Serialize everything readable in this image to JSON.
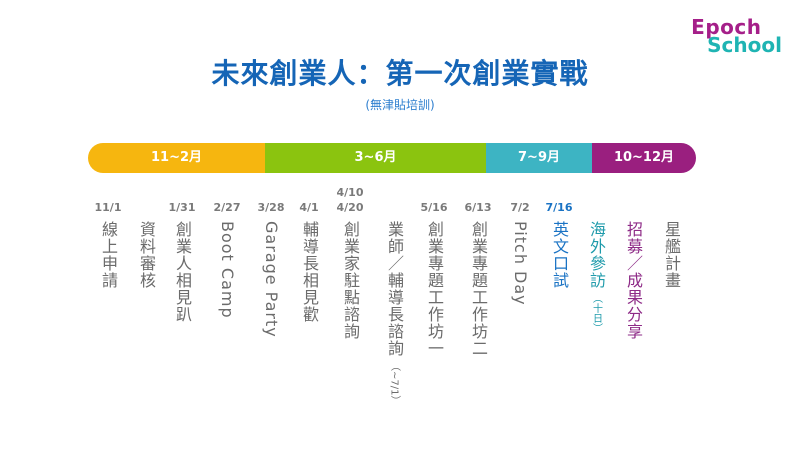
{
  "logo": {
    "line1": "Epoch",
    "line2": "School"
  },
  "title": "未來創業人：第一次創業實戰",
  "subtitle": "(無津貼培訓)",
  "timeline": {
    "segments": [
      {
        "label": "11~2月",
        "color": "#f6b60f"
      },
      {
        "label": "3~6月",
        "color": "#8bc40f"
      },
      {
        "label": "7~9月",
        "color": "#3db4c3"
      },
      {
        "label": "10~12月",
        "color": "#9a1f7f"
      }
    ]
  },
  "events": [
    {
      "date": "11/1",
      "label": "線上申請"
    },
    {
      "date": "",
      "label": "資料審核"
    },
    {
      "date": "1/31",
      "label": "創業人相見趴"
    },
    {
      "date": "2/27",
      "label": "Boot Camp"
    },
    {
      "date": "3/28",
      "label": "Garage Party"
    },
    {
      "date": "4/1",
      "label": "輔導長相見歡"
    },
    {
      "date_line1": "4/10",
      "date": "4/20",
      "label": "創業家駐點諮詢"
    },
    {
      "date": "",
      "label": "業師／輔導長諮詢",
      "note": "（~7/1）"
    },
    {
      "date": "5/16",
      "label": "創業專題工作坊一"
    },
    {
      "date": "6/13",
      "label": "創業專題工作坊二"
    },
    {
      "date": "7/2",
      "label": "Pitch Day"
    },
    {
      "date": "7/16",
      "label": "英文口試"
    },
    {
      "date": "",
      "label": "海外參訪",
      "note": "（十日）"
    },
    {
      "date": "",
      "label": "招募／成果分享"
    },
    {
      "date": "",
      "label": "星艦計畫"
    }
  ]
}
